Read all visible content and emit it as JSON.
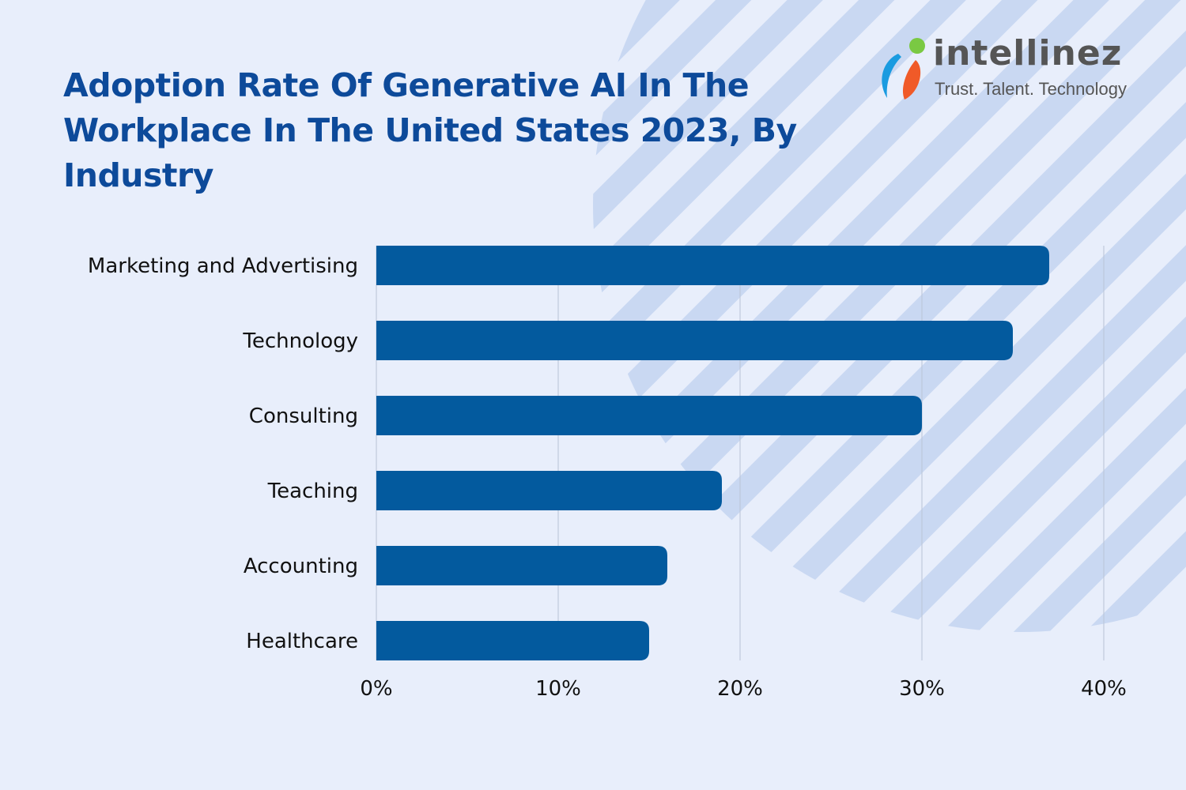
{
  "header": {
    "title": "Adoption Rate Of Generative AI In The Workplace In The United States 2023, By Industry"
  },
  "logo": {
    "wordmark": "intellinez",
    "tagline": "Trust. Talent. Technology"
  },
  "colors": {
    "background": "#e8eefb",
    "stripes": "#c9d8f2",
    "bar": "#035a9e",
    "title": "#0d4a9a"
  },
  "chart_data": {
    "type": "bar",
    "orientation": "horizontal",
    "title": "Adoption Rate Of Generative AI In The Workplace In The United States 2023, By Industry",
    "categories": [
      "Marketing and Advertising",
      "Technology",
      "Consulting",
      "Teaching",
      "Accounting",
      "Healthcare"
    ],
    "values": [
      37,
      35,
      30,
      19,
      16,
      15
    ],
    "unit": "%",
    "xlim": [
      0,
      40
    ],
    "xticks": [
      "0%",
      "10%",
      "20%",
      "30%",
      "40%"
    ],
    "xlabel": "",
    "ylabel": "",
    "grid": "vertical"
  }
}
